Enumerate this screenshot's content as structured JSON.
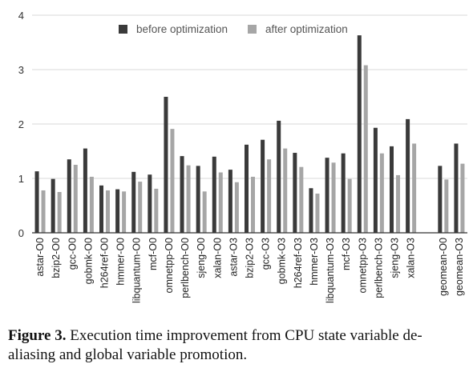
{
  "chart_data": {
    "type": "bar",
    "title": "",
    "xlabel": "",
    "ylabel": "",
    "ylim": [
      0,
      4
    ],
    "yticks": [
      0,
      1,
      2,
      3,
      4
    ],
    "grid": true,
    "legend_position": "top-center",
    "colors": {
      "before": "#3a3a3a",
      "after": "#a6a6a6",
      "grid": "#d9d9d9",
      "axis": "#333333"
    },
    "categories": [
      "astar-O0",
      "bzip2-O0",
      "gcc-O0",
      "gobmk-O0",
      "h264ref-O0",
      "hmmer-O0",
      "libquantum-O0",
      "mcf-O0",
      "omnetpp-O0",
      "perlbench-O0",
      "sjeng-O0",
      "xalan-O0",
      "astar-O3",
      "bzip2-O3",
      "gcc-O3",
      "gobmk-O3",
      "h264ref-O3",
      "hmmer-O3",
      "libquantum-O3",
      "mcf-O3",
      "omnetpp-O3",
      "perlbench-O3",
      "sjeng-O3",
      "xalan-O3",
      "",
      "geomean-O0",
      "geomean-O3"
    ],
    "series": [
      {
        "name": "before optimization",
        "values": [
          1.13,
          0.99,
          1.35,
          1.55,
          0.87,
          0.8,
          1.12,
          1.07,
          2.5,
          1.41,
          1.23,
          1.4,
          1.16,
          1.62,
          1.71,
          2.06,
          1.47,
          0.82,
          1.38,
          1.46,
          3.63,
          1.93,
          1.59,
          2.09,
          null,
          1.23,
          1.64
        ]
      },
      {
        "name": "after optimization",
        "values": [
          0.78,
          0.75,
          1.25,
          1.03,
          0.78,
          0.76,
          0.94,
          0.81,
          1.91,
          1.24,
          0.76,
          1.11,
          0.93,
          1.03,
          1.35,
          1.55,
          1.21,
          0.72,
          1.29,
          0.99,
          3.08,
          1.46,
          1.06,
          1.64,
          null,
          0.98,
          1.27
        ]
      }
    ]
  },
  "caption": {
    "label": "Figure 3.",
    "text": " Execution time improvement from CPU state variable de-aliasing and global variable promotion."
  }
}
